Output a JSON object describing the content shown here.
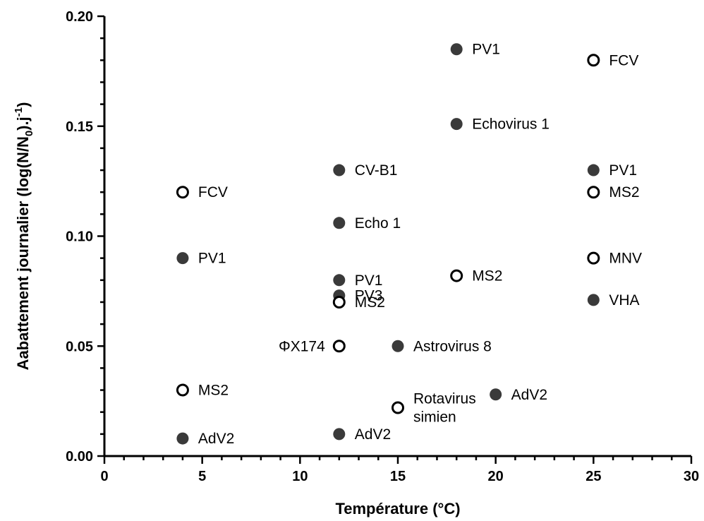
{
  "chart_data": {
    "type": "scatter",
    "xlabel": "Température (°C)",
    "ylabel_parts": [
      "Aabattement journalier (log(N/N",
      "0",
      ").j",
      "-1",
      ")"
    ],
    "xlim": [
      0,
      30
    ],
    "ylim": [
      0,
      0.2
    ],
    "x_ticks": [
      "0",
      "5",
      "10",
      "15",
      "20",
      "25",
      "30"
    ],
    "y_ticks": [
      "0.00",
      "0.05",
      "0.10",
      "0.15",
      "0.20"
    ],
    "grid": false,
    "legend": "none",
    "marker_colors": {
      "filled": "#3a3a3a",
      "open_stroke": "#000000",
      "open_fill": "#ffffff"
    },
    "points": [
      {
        "x": 18,
        "y": 0.185,
        "label": [
          "PV1"
        ],
        "marker": "filled",
        "label_side": "right"
      },
      {
        "x": 25,
        "y": 0.18,
        "label": [
          "FCV"
        ],
        "marker": "open",
        "label_side": "right"
      },
      {
        "x": 18,
        "y": 0.151,
        "label": [
          "Echovirus 1"
        ],
        "marker": "filled",
        "label_side": "right"
      },
      {
        "x": 12,
        "y": 0.13,
        "label": [
          "CV-B1"
        ],
        "marker": "filled",
        "label_side": "right"
      },
      {
        "x": 25,
        "y": 0.13,
        "label": [
          "PV1"
        ],
        "marker": "filled",
        "label_side": "right"
      },
      {
        "x": 4,
        "y": 0.12,
        "label": [
          "FCV"
        ],
        "marker": "open",
        "label_side": "right"
      },
      {
        "x": 25,
        "y": 0.12,
        "label": [
          "MS2"
        ],
        "marker": "open",
        "label_side": "right"
      },
      {
        "x": 12,
        "y": 0.106,
        "label": [
          "Echo 1"
        ],
        "marker": "filled",
        "label_side": "right"
      },
      {
        "x": 4,
        "y": 0.09,
        "label": [
          "PV1"
        ],
        "marker": "filled",
        "label_side": "right"
      },
      {
        "x": 25,
        "y": 0.09,
        "label": [
          "MNV"
        ],
        "marker": "open",
        "label_side": "right"
      },
      {
        "x": 12,
        "y": 0.08,
        "label": [
          "PV1"
        ],
        "marker": "filled",
        "label_side": "right"
      },
      {
        "x": 18,
        "y": 0.082,
        "label": [
          "MS2"
        ],
        "marker": "open",
        "label_side": "right"
      },
      {
        "x": 12,
        "y": 0.073,
        "label": [
          "PV3"
        ],
        "marker": "filled",
        "label_side": "right"
      },
      {
        "x": 12,
        "y": 0.07,
        "label": [
          "MS2"
        ],
        "marker": "open",
        "label_side": "right"
      },
      {
        "x": 25,
        "y": 0.071,
        "label": [
          "VHA"
        ],
        "marker": "filled",
        "label_side": "right"
      },
      {
        "x": 12,
        "y": 0.05,
        "label": [
          "ΦX174"
        ],
        "marker": "open",
        "label_side": "left"
      },
      {
        "x": 15,
        "y": 0.05,
        "label": [
          "Astrovirus 8"
        ],
        "marker": "filled",
        "label_side": "right"
      },
      {
        "x": 4,
        "y": 0.03,
        "label": [
          "MS2"
        ],
        "marker": "open",
        "label_side": "right"
      },
      {
        "x": 20,
        "y": 0.028,
        "label": [
          "AdV2"
        ],
        "marker": "filled",
        "label_side": "right"
      },
      {
        "x": 15,
        "y": 0.022,
        "label": [
          "Rotavirus",
          "simien"
        ],
        "marker": "open",
        "label_side": "right"
      },
      {
        "x": 12,
        "y": 0.01,
        "label": [
          "AdV2"
        ],
        "marker": "filled",
        "label_side": "right"
      },
      {
        "x": 4,
        "y": 0.008,
        "label": [
          "AdV2"
        ],
        "marker": "filled",
        "label_side": "right"
      }
    ]
  }
}
